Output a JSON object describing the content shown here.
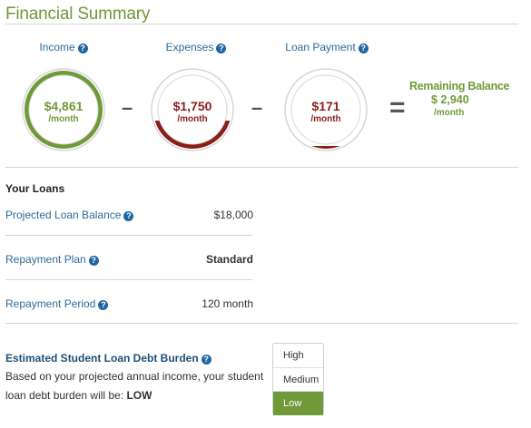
{
  "header": {
    "title": "Financial Summary"
  },
  "help_icon_glyph": "?",
  "gauges": [
    {
      "label": "Income",
      "amount": "$4,861",
      "period": "/month",
      "color": "#6f9a37",
      "fill_fraction": 1.0
    },
    {
      "label": "Expenses",
      "amount": "$1,750",
      "period": "/month",
      "color": "#8a1f1a",
      "fill_fraction": 0.36
    },
    {
      "label": "Loan Payment",
      "amount": "$171",
      "period": "/month",
      "color": "#8a1f1a",
      "fill_fraction": 0.035
    }
  ],
  "operators": {
    "minus": "–",
    "equals": "="
  },
  "remaining": {
    "title": "Remaining Balance",
    "amount": "$ 2,940",
    "period": "/month"
  },
  "loans": {
    "heading": "Your Loans",
    "rows": [
      {
        "label": "Projected Loan Balance",
        "value": "$18,000"
      },
      {
        "label": "Repayment Plan",
        "value": "Standard"
      },
      {
        "label": "Repayment Period",
        "value": "120 month"
      }
    ]
  },
  "burden": {
    "heading": "Estimated Student Loan Debt Burden",
    "text": "Based on your projected annual income, your student loan debt burden will be:",
    "result": "LOW",
    "levels": [
      "High",
      "Medium",
      "Low"
    ],
    "selected_index": 2
  },
  "colors": {
    "green": "#6f9a37",
    "dark_red": "#8a1f1a",
    "blue": "#2c6c9c",
    "track": "#d6d6d6"
  }
}
